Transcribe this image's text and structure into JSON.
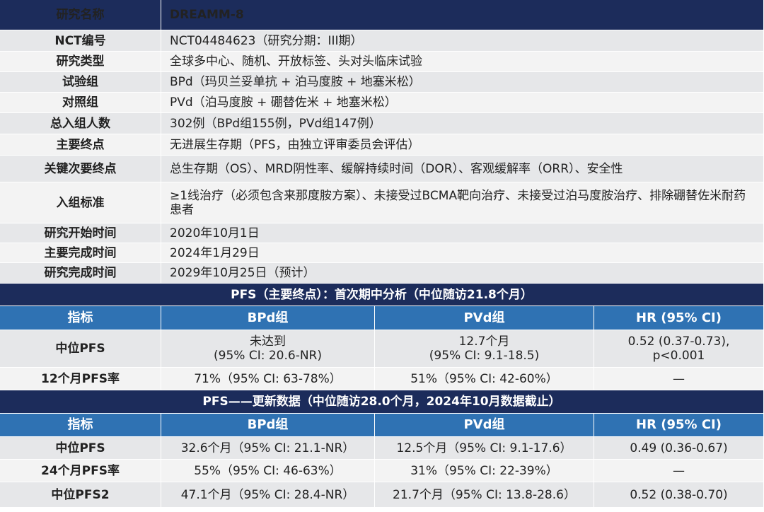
{
  "study": {
    "header": [
      "研究名称",
      "DREAMM-8"
    ],
    "rows": [
      [
        "NCT编号",
        "NCT04484623（研究分期：III期）"
      ],
      [
        "研究类型",
        "全球多中心、随机、开放标签、头对头临床试验"
      ],
      [
        "试验组",
        "BPd（玛贝兰妥单抗 + 泊马度胺 + 地塞米松）"
      ],
      [
        "对照组",
        "PVd（泊马度胺 + 硼替佐米 + 地塞米松）"
      ],
      [
        "总入组人数",
        "302例（BPd组155例，PVd组147例）"
      ],
      [
        "主要终点",
        "无进展生存期（PFS，由独立评审委员会评估）"
      ],
      [
        "关键次要终点",
        "总生存期（OS）、MRD阴性率、缓解持续时间（DOR）、客观缓解率（ORR）、安全性"
      ],
      [
        "入组标准",
        "≥1线治疗（必须包含来那度胺方案）、未接受过BCMA靶向治疗、未接受过泊马度胺治疗、排除硼替佐米耐药患者"
      ],
      [
        "研究开始时间",
        "2020年10月1日"
      ],
      [
        "主要完成时间",
        "2024年1月29日"
      ],
      [
        "研究完成时间",
        "2029年10月25日（预计）"
      ]
    ]
  },
  "sections": [
    {
      "title": "PFS（主要终点）：首次期中分析（中位随访21.8个月）",
      "columns": [
        "指标",
        "BPd组",
        "PVd组",
        "HR (95% CI)"
      ],
      "rows": [
        [
          "中位PFS",
          "未达到\n(95% CI: 20.6-NR)",
          "12.7个月\n(95% CI: 9.1-18.5)",
          "0.52 (0.37-0.73),\np<0.001"
        ],
        [
          "12个月PFS率",
          "71%（95% CI: 63-78%）",
          "51%（95% CI: 42-60%）",
          "—"
        ]
      ]
    },
    {
      "title": "PFS——更新数据（中位随访28.0个月，2024年10月数据截止）",
      "columns": [
        "指标",
        "BPd组",
        "PVd组",
        "HR (95% CI)"
      ],
      "rows": [
        [
          "中位PFS",
          "32.6个月（95% CI: 21.1-NR）",
          "12.5个月（95% CI: 9.1-17.6）",
          "0.49 (0.36-0.67)"
        ],
        [
          "24个月PFS率",
          "55%（95% CI: 46-63%）",
          "31%（95% CI: 22-39%）",
          "—"
        ],
        [
          "中位PFS2",
          "47.1个月（95% CI: 28.4-NR）",
          "21.7个月（95% CI: 13.8-28.6）",
          "0.52 (0.38-0.70)"
        ]
      ]
    }
  ]
}
